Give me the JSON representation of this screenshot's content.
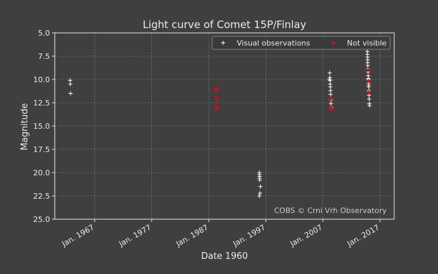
{
  "chart_data": {
    "type": "scatter",
    "title": "Light curve of Comet 15P/Finlay",
    "xlabel": "Date 1960",
    "ylabel": "Magnitude",
    "ylim": [
      25.0,
      5.0
    ],
    "y_inverted": true,
    "xlim": [
      "1960-01-01",
      "2019-07-01"
    ],
    "yticks": [
      "5.0",
      "7.5",
      "10.0",
      "12.5",
      "15.0",
      "17.5",
      "20.0",
      "22.5",
      "25.0"
    ],
    "xticks": [
      {
        "label": "Jan. 1967",
        "date": "1967-01-01"
      },
      {
        "label": "Jan. 1977",
        "date": "1977-01-01"
      },
      {
        "label": "Jan. 1987",
        "date": "1987-01-01"
      },
      {
        "label": "Jan. 1997",
        "date": "1997-01-01"
      },
      {
        "label": "Jan. 2007",
        "date": "2007-01-01"
      },
      {
        "label": "Jan. 2017",
        "date": "2017-01-01"
      }
    ],
    "grid": true,
    "legend_position": "top-right",
    "watermark": "COBS © Crni Vrh Observatory",
    "series": [
      {
        "name": "Visual observations",
        "marker": "plus",
        "color": "#ffffff",
        "points": [
          [
            "1962-09-15",
            10.1
          ],
          [
            "1962-09-25",
            10.5
          ],
          [
            "1962-10-10",
            11.5
          ],
          [
            "1995-11-15",
            20.0
          ],
          [
            "1995-11-20",
            20.2
          ],
          [
            "1995-11-25",
            20.4
          ],
          [
            "1995-12-01",
            20.6
          ],
          [
            "1995-12-05",
            20.8
          ],
          [
            "1996-01-20",
            21.5
          ],
          [
            "1995-11-10",
            22.5
          ],
          [
            "1995-12-20",
            22.2
          ],
          [
            "2008-03-10",
            9.3
          ],
          [
            "2008-03-20",
            9.8
          ],
          [
            "2008-04-01",
            10.1
          ],
          [
            "2008-04-10",
            10.5
          ],
          [
            "2008-04-20",
            10.8
          ],
          [
            "2008-05-01",
            11.2
          ],
          [
            "2008-05-10",
            11.6
          ],
          [
            "2008-05-20",
            12.2
          ],
          [
            "2008-06-01",
            12.6
          ],
          [
            "2008-02-25",
            10.0
          ],
          [
            "2008-06-15",
            13.0
          ],
          [
            "2014-10-15",
            7.0
          ],
          [
            "2014-10-20",
            7.3
          ],
          [
            "2014-10-25",
            7.6
          ],
          [
            "2014-11-01",
            7.9
          ],
          [
            "2014-11-05",
            8.2
          ],
          [
            "2014-11-10",
            8.5
          ],
          [
            "2014-11-20",
            8.9
          ],
          [
            "2014-12-01",
            9.2
          ],
          [
            "2014-12-10",
            9.6
          ],
          [
            "2014-12-20",
            10.0
          ],
          [
            "2015-01-01",
            10.4
          ],
          [
            "2015-01-10",
            10.8
          ],
          [
            "2015-01-20",
            11.2
          ],
          [
            "2015-02-01",
            11.7
          ],
          [
            "2015-02-10",
            12.1
          ],
          [
            "2015-02-20",
            12.6
          ],
          [
            "2015-03-01",
            12.8
          ],
          [
            "2014-12-25",
            9.9
          ],
          [
            "2015-01-05",
            10.6
          ]
        ]
      },
      {
        "name": "Not visible",
        "marker": "star",
        "color": "#cc1111",
        "points": [
          [
            "1988-04-01",
            11.0
          ],
          [
            "1988-04-10",
            11.2
          ],
          [
            "1988-05-01",
            12.0
          ],
          [
            "1988-05-10",
            12.1
          ],
          [
            "1988-06-01",
            12.9
          ],
          [
            "1988-06-10",
            13.1
          ],
          [
            "2008-04-15",
            12.1
          ],
          [
            "2008-05-15",
            13.0
          ],
          [
            "2008-05-25",
            13.3
          ],
          [
            "2014-12-15",
            9.0
          ],
          [
            "2015-01-01",
            10.2
          ],
          [
            "2015-01-15",
            11.4
          ]
        ]
      }
    ]
  }
}
